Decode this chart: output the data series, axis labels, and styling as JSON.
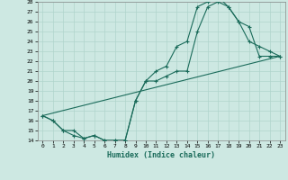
{
  "xlabel": "Humidex (Indice chaleur)",
  "xlim": [
    -0.5,
    23.5
  ],
  "ylim": [
    14,
    28
  ],
  "xticks": [
    0,
    1,
    2,
    3,
    4,
    5,
    6,
    7,
    8,
    9,
    10,
    11,
    12,
    13,
    14,
    15,
    16,
    17,
    18,
    19,
    20,
    21,
    22,
    23
  ],
  "yticks": [
    14,
    15,
    16,
    17,
    18,
    19,
    20,
    21,
    22,
    23,
    24,
    25,
    26,
    27,
    28
  ],
  "bg_color": "#cde8e2",
  "line_color": "#1a6b5a",
  "grid_color": "#b0d4cc",
  "line1_x": [
    0,
    1,
    2,
    3,
    4,
    5,
    6,
    7,
    8,
    9,
    10,
    11,
    12,
    13,
    14,
    15,
    16,
    17,
    18,
    19,
    20,
    21,
    22,
    23
  ],
  "line1_y": [
    16.5,
    16.0,
    15.0,
    14.5,
    14.2,
    14.5,
    14.0,
    14.0,
    14.0,
    18.0,
    20.0,
    20.0,
    20.5,
    21.0,
    21.0,
    25.0,
    27.5,
    28.0,
    27.5,
    26.0,
    24.0,
    23.5,
    23.0,
    22.5
  ],
  "line2_x": [
    0,
    1,
    2,
    3,
    4,
    5,
    6,
    7,
    8,
    9,
    10,
    11,
    12,
    13,
    14,
    15,
    16,
    17,
    18,
    19,
    20,
    21,
    22,
    23
  ],
  "line2_y": [
    16.5,
    16.0,
    15.0,
    15.0,
    14.2,
    14.5,
    14.0,
    14.0,
    14.0,
    18.0,
    20.0,
    21.0,
    21.5,
    23.5,
    24.0,
    27.5,
    28.0,
    28.5,
    27.5,
    26.0,
    25.5,
    22.5,
    22.5,
    22.5
  ],
  "line3_x": [
    0,
    23
  ],
  "line3_y": [
    16.5,
    22.5
  ]
}
